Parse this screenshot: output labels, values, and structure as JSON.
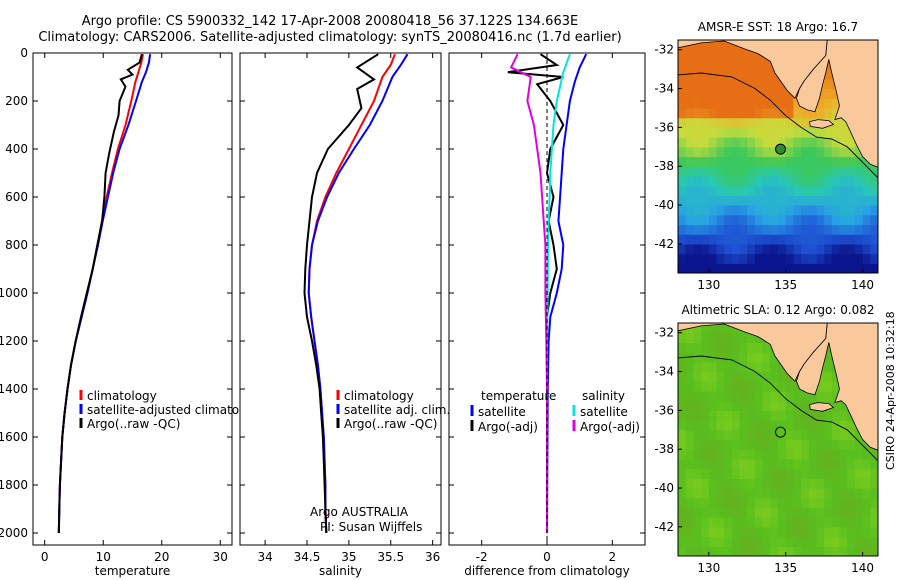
{
  "header": {
    "title_line1": "Argo profile: CS 5900332_142 17-Apr-2008 20080418_56 37.122S 134.663E",
    "title_line2": "Climatology: CARS2006. Satellite-adjusted climatology: synTS_20080416.nc (1.7d earlier)"
  },
  "side_stamp": "CSIRO 24-Apr-2008 10:32:18",
  "colors": {
    "climatology": "#ff0000",
    "satellite": "#0000ff",
    "argo": "#000000",
    "salinity_satellite": "#00e5e5",
    "salinity_argo": "#e000e0",
    "land": "#f9c89b",
    "marker": "#2e8b2e"
  },
  "chart_data": [
    {
      "type": "line",
      "title": "",
      "xlabel": "temperature",
      "ylabel": "",
      "xlim": [
        -2,
        32
      ],
      "ylim": [
        2050,
        0
      ],
      "y_reversed": true,
      "xticks": [
        0,
        10,
        20,
        30
      ],
      "yticks": [
        0,
        200,
        400,
        600,
        800,
        1000,
        1200,
        1400,
        1600,
        1800,
        2000
      ],
      "legend": {
        "placement": "lower-left",
        "entries": [
          "climatology",
          "satellite-adjusted climatology",
          "Argo(..raw -QC)"
        ]
      },
      "series": [
        {
          "name": "climatology",
          "color": "#ff0000",
          "points": [
            [
              16.8,
              5
            ],
            [
              16.5,
              40
            ],
            [
              16.0,
              80
            ],
            [
              15.5,
              120
            ],
            [
              14.8,
              200
            ],
            [
              13.8,
              300
            ],
            [
              12.5,
              400
            ],
            [
              11.5,
              500
            ],
            [
              10.6,
              600
            ],
            [
              9.8,
              700
            ],
            [
              9.0,
              800
            ],
            [
              8.2,
              900
            ],
            [
              7.3,
              1000
            ],
            [
              6.3,
              1100
            ],
            [
              5.3,
              1200
            ],
            [
              4.5,
              1300
            ],
            [
              3.9,
              1400
            ],
            [
              3.4,
              1500
            ],
            [
              3.0,
              1600
            ],
            [
              2.8,
              1700
            ],
            [
              2.6,
              1800
            ],
            [
              2.5,
              1900
            ],
            [
              2.4,
              2000
            ]
          ]
        },
        {
          "name": "satellite-adjusted climatology",
          "color": "#0000ff",
          "points": [
            [
              18.0,
              5
            ],
            [
              17.8,
              40
            ],
            [
              17.3,
              80
            ],
            [
              16.6,
              120
            ],
            [
              15.6,
              200
            ],
            [
              14.3,
              300
            ],
            [
              12.8,
              400
            ],
            [
              11.7,
              500
            ],
            [
              10.8,
              600
            ],
            [
              9.9,
              700
            ],
            [
              9.1,
              800
            ],
            [
              8.2,
              900
            ],
            [
              7.3,
              1000
            ],
            [
              6.3,
              1100
            ],
            [
              5.3,
              1200
            ],
            [
              4.5,
              1300
            ],
            [
              3.9,
              1400
            ],
            [
              3.4,
              1500
            ],
            [
              3.0,
              1600
            ],
            [
              2.8,
              1700
            ],
            [
              2.6,
              1800
            ],
            [
              2.5,
              1900
            ],
            [
              2.4,
              2000
            ]
          ]
        },
        {
          "name": "Argo(..raw -QC)",
          "color": "#000000",
          "points": [
            [
              16.6,
              5
            ],
            [
              16.2,
              40
            ],
            [
              14.2,
              70
            ],
            [
              15.0,
              90
            ],
            [
              13.0,
              110
            ],
            [
              13.8,
              140
            ],
            [
              12.8,
              200
            ],
            [
              12.6,
              260
            ],
            [
              11.8,
              330
            ],
            [
              11.0,
              420
            ],
            [
              10.4,
              500
            ],
            [
              10.2,
              600
            ],
            [
              9.8,
              700
            ],
            [
              9.0,
              800
            ],
            [
              8.2,
              900
            ],
            [
              7.2,
              1000
            ],
            [
              6.2,
              1100
            ],
            [
              5.3,
              1200
            ],
            [
              4.5,
              1300
            ],
            [
              3.9,
              1400
            ],
            [
              3.4,
              1500
            ],
            [
              3.0,
              1600
            ],
            [
              2.8,
              1700
            ],
            [
              2.6,
              1800
            ],
            [
              2.5,
              1900
            ],
            [
              2.4,
              2000
            ]
          ]
        }
      ]
    },
    {
      "type": "line",
      "title": "",
      "xlabel": "salinity",
      "ylabel": "",
      "xlim": [
        33.7,
        36.1
      ],
      "ylim": [
        2050,
        0
      ],
      "y_reversed": true,
      "xticks": [
        34,
        34.5,
        35,
        35.5,
        36
      ],
      "yticks": [
        0,
        200,
        400,
        600,
        800,
        1000,
        1200,
        1400,
        1600,
        1800,
        2000
      ],
      "legend": {
        "placement": "lower-right",
        "entries": [
          "climatology",
          "satellite adj. clim.",
          "Argo(..raw -QC)"
        ]
      },
      "annotation": [
        "Argo AUSTRALIA",
        "PI: Susan Wijffels"
      ],
      "series": [
        {
          "name": "climatology",
          "color": "#ff0000",
          "points": [
            [
              35.55,
              5
            ],
            [
              35.5,
              50
            ],
            [
              35.4,
              100
            ],
            [
              35.3,
              200
            ],
            [
              35.15,
              300
            ],
            [
              35.0,
              400
            ],
            [
              34.85,
              500
            ],
            [
              34.72,
              600
            ],
            [
              34.62,
              700
            ],
            [
              34.56,
              800
            ],
            [
              34.53,
              900
            ],
            [
              34.52,
              1000
            ],
            [
              34.55,
              1100
            ],
            [
              34.59,
              1200
            ],
            [
              34.63,
              1300
            ],
            [
              34.66,
              1400
            ],
            [
              34.68,
              1500
            ],
            [
              34.7,
              1600
            ],
            [
              34.71,
              1700
            ],
            [
              34.72,
              1800
            ],
            [
              34.72,
              1900
            ],
            [
              34.73,
              2000
            ]
          ]
        },
        {
          "name": "satellite adj. clim.",
          "color": "#0000ff",
          "points": [
            [
              35.7,
              5
            ],
            [
              35.62,
              50
            ],
            [
              35.52,
              100
            ],
            [
              35.4,
              200
            ],
            [
              35.25,
              300
            ],
            [
              35.06,
              400
            ],
            [
              34.88,
              500
            ],
            [
              34.74,
              600
            ],
            [
              34.63,
              700
            ],
            [
              34.56,
              800
            ],
            [
              34.53,
              900
            ],
            [
              34.52,
              1000
            ],
            [
              34.55,
              1100
            ],
            [
              34.59,
              1200
            ],
            [
              34.63,
              1300
            ],
            [
              34.66,
              1400
            ],
            [
              34.68,
              1500
            ],
            [
              34.7,
              1600
            ],
            [
              34.71,
              1700
            ],
            [
              34.72,
              1800
            ],
            [
              34.72,
              1900
            ],
            [
              34.73,
              2000
            ]
          ]
        },
        {
          "name": "Argo(..raw -QC)",
          "color": "#000000",
          "points": [
            [
              35.35,
              5
            ],
            [
              35.1,
              60
            ],
            [
              35.3,
              110
            ],
            [
              35.1,
              150
            ],
            [
              35.15,
              230
            ],
            [
              35.0,
              300
            ],
            [
              34.75,
              400
            ],
            [
              34.62,
              500
            ],
            [
              34.56,
              600
            ],
            [
              34.53,
              700
            ],
            [
              34.5,
              800
            ],
            [
              34.48,
              900
            ],
            [
              34.47,
              1000
            ],
            [
              34.5,
              1100
            ],
            [
              34.56,
              1200
            ],
            [
              34.61,
              1300
            ],
            [
              34.65,
              1400
            ],
            [
              34.67,
              1500
            ],
            [
              34.69,
              1600
            ],
            [
              34.7,
              1700
            ],
            [
              34.71,
              1800
            ],
            [
              34.72,
              1900
            ],
            [
              34.73,
              2000
            ]
          ]
        }
      ]
    },
    {
      "type": "line",
      "title": "",
      "xlabel": "difference from climatology",
      "ylabel": "",
      "xlim": [
        -3,
        3
      ],
      "ylim": [
        2050,
        0
      ],
      "y_reversed": true,
      "xticks": [
        -2,
        0,
        2
      ],
      "yticks": [
        0,
        200,
        400,
        600,
        800,
        1000,
        1200,
        1400,
        1600,
        1800,
        2000
      ],
      "legend": {
        "placement": "lower-center",
        "headers": [
          "temperature",
          "salinity"
        ],
        "entries": [
          "satellite",
          "Argo(-adj)",
          "satellite",
          "Argo(-adj)"
        ]
      },
      "series": [
        {
          "name": "temperature satellite",
          "color": "#0000ff",
          "points": [
            [
              1.2,
              5
            ],
            [
              1.0,
              60
            ],
            [
              0.85,
              120
            ],
            [
              0.7,
              200
            ],
            [
              0.6,
              300
            ],
            [
              0.5,
              400
            ],
            [
              0.45,
              500
            ],
            [
              0.4,
              600
            ],
            [
              0.35,
              700
            ],
            [
              0.5,
              800
            ],
            [
              0.45,
              900
            ],
            [
              0.3,
              1000
            ],
            [
              0.1,
              1100
            ],
            [
              0.05,
              1200
            ],
            [
              0.02,
              1400
            ],
            [
              0.0,
              2000
            ]
          ]
        },
        {
          "name": "temperature Argo(-adj)",
          "color": "#000000",
          "points": [
            [
              -0.2,
              5
            ],
            [
              0.3,
              50
            ],
            [
              -1.2,
              80
            ],
            [
              0.5,
              100
            ],
            [
              -0.3,
              130
            ],
            [
              0.1,
              200
            ],
            [
              0.5,
              300
            ],
            [
              0.1,
              400
            ],
            [
              0.0,
              500
            ],
            [
              0.2,
              600
            ],
            [
              0.05,
              700
            ],
            [
              0.2,
              800
            ],
            [
              0.3,
              900
            ],
            [
              0.1,
              1000
            ],
            [
              0.0,
              1100
            ],
            [
              0.0,
              1200
            ],
            [
              0.0,
              2000
            ]
          ]
        },
        {
          "name": "salinity satellite",
          "color": "#00e5e5",
          "points": [
            [
              0.7,
              5
            ],
            [
              0.5,
              80
            ],
            [
              0.3,
              200
            ],
            [
              0.2,
              300
            ],
            [
              0.15,
              400
            ],
            [
              0.1,
              500
            ],
            [
              0.08,
              600
            ],
            [
              0.05,
              700
            ],
            [
              0.03,
              800
            ],
            [
              0.02,
              1000
            ],
            [
              0.0,
              1200
            ],
            [
              0.0,
              2000
            ]
          ]
        },
        {
          "name": "salinity Argo(-adj)",
          "color": "#e000e0",
          "points": [
            [
              -0.9,
              5
            ],
            [
              -1.1,
              60
            ],
            [
              -0.5,
              100
            ],
            [
              -0.6,
              200
            ],
            [
              -0.4,
              300
            ],
            [
              -0.3,
              400
            ],
            [
              -0.2,
              500
            ],
            [
              -0.15,
              600
            ],
            [
              -0.1,
              700
            ],
            [
              -0.05,
              800
            ],
            [
              -0.05,
              1000
            ],
            [
              -0.02,
              1200
            ],
            [
              0.0,
              1400
            ],
            [
              0.0,
              2000
            ]
          ]
        }
      ]
    },
    {
      "type": "heatmap",
      "title": "AMSR-E SST: 18 Argo: 16.7",
      "xlabel": "",
      "ylabel": "",
      "xlim": [
        128,
        141
      ],
      "ylim": [
        -43.5,
        -31.5
      ],
      "xticks": [
        130,
        135,
        140
      ],
      "yticks": [
        -32,
        -34,
        -36,
        -38,
        -40,
        -42
      ],
      "marker": [
        134.663,
        -37.122
      ],
      "land_color": "#f9c89b"
    },
    {
      "type": "heatmap",
      "title": "Altimetric SLA: 0.12 Argo: 0.082",
      "xlabel": "",
      "ylabel": "",
      "xlim": [
        128,
        141
      ],
      "ylim": [
        -43.5,
        -31.5
      ],
      "xticks": [
        130,
        135,
        140
      ],
      "yticks": [
        -32,
        -34,
        -36,
        -38,
        -40,
        -42
      ],
      "marker": [
        134.663,
        -37.122
      ],
      "land_color": "#f9c89b"
    }
  ]
}
